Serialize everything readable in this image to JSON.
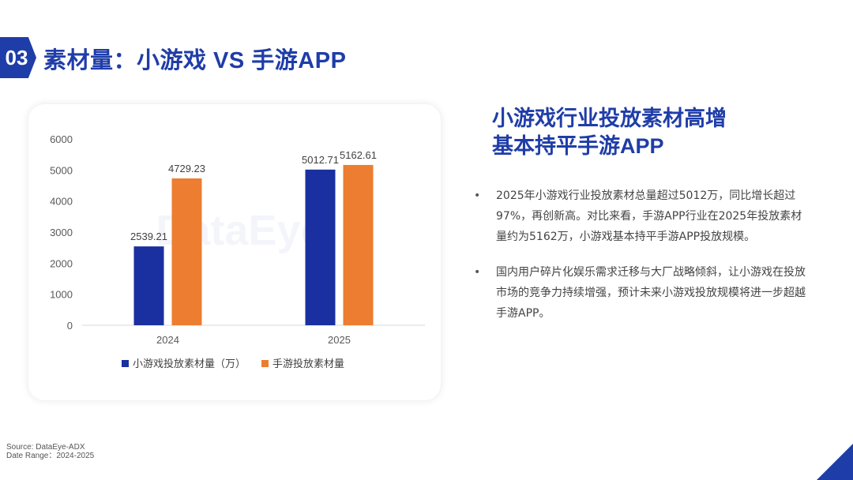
{
  "header": {
    "section_number": "03",
    "title": "素材量：小游戏 VS 手游APP"
  },
  "headline": {
    "lines": [
      "小游戏行业投放素材高增",
      "基本持平手游APP"
    ]
  },
  "bullets": [
    {
      "marker": "•",
      "text": "2025年小游戏行业投放素材总量超过5012万，同比增长超过97%，再创新高。对比来看，手游APP行业在2025年投放素材量约为5162万，小游戏基本持平手游APP投放规模。"
    },
    {
      "marker": "•",
      "text": "国内用户碎片化娱乐需求迁移与大厂战略倾斜，让小游戏在投放市场的竞争力持续增强，预计未来小游戏投放规模将进一步超越手游APP。"
    }
  ],
  "source": {
    "line1": "Source: DataEye-ADX",
    "line2": "Date Range：2024-2025"
  },
  "colors": {
    "accent": "#1f3da8",
    "series1": "#1a2fa0",
    "series2": "#ed7d31"
  },
  "chart_data": {
    "type": "bar",
    "categories": [
      "2024",
      "2025"
    ],
    "series": [
      {
        "name": "小游戏投放素材量（万）",
        "values": [
          2539.21,
          5012.71
        ],
        "labels": [
          "2539.21",
          "5012.71"
        ],
        "color": "#1a2fa0"
      },
      {
        "name": "手游投放素材量",
        "values": [
          4729.23,
          5162.61
        ],
        "labels": [
          "4729.23",
          "5162.61"
        ],
        "color": "#ed7d31"
      }
    ],
    "yticks": [
      "0",
      "1000",
      "2000",
      "3000",
      "4000",
      "5000",
      "6000"
    ],
    "ylim": [
      0,
      6000
    ],
    "grid": false,
    "legend_position": "bottom",
    "watermark": "DataEye"
  }
}
